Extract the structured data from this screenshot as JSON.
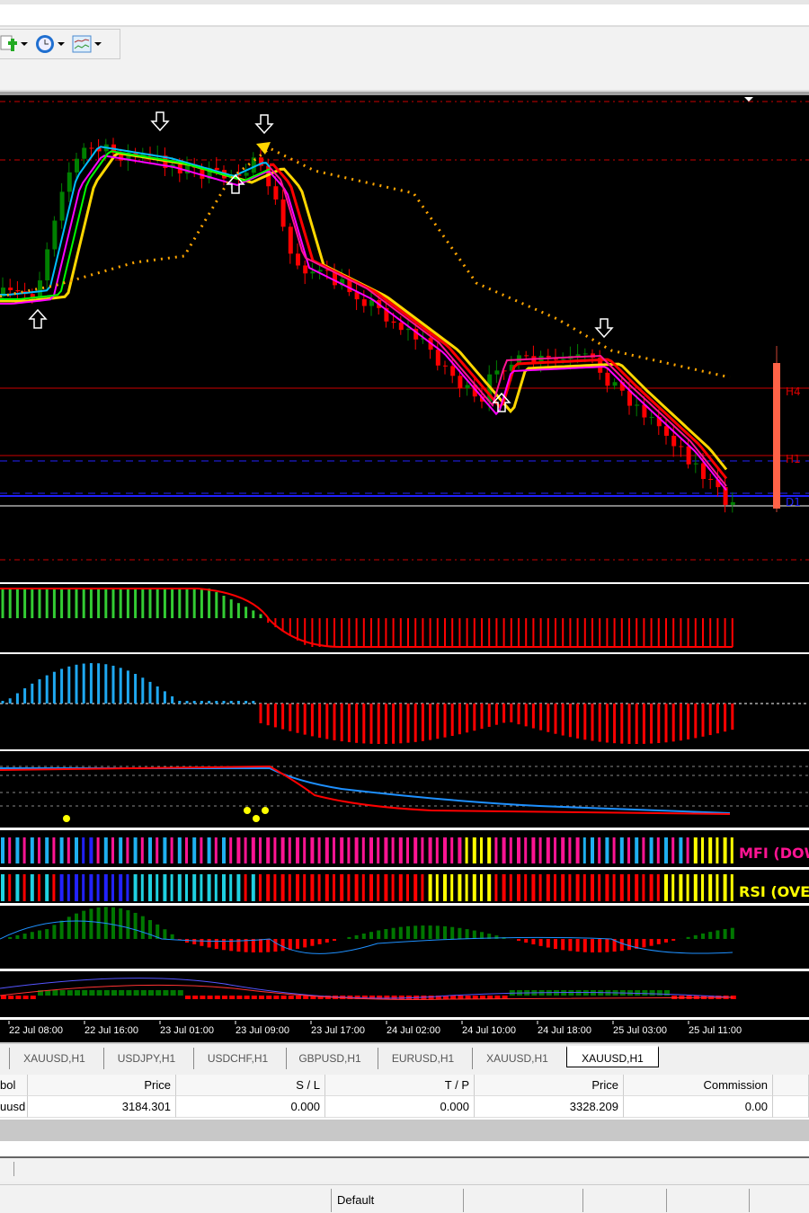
{
  "toolbar": {
    "buttons": [
      {
        "name": "new-chart",
        "icon": "file-plus-icon"
      },
      {
        "name": "periods",
        "icon": "clock-icon"
      },
      {
        "name": "templates",
        "icon": "chart-template-icon"
      }
    ]
  },
  "chart": {
    "symbol": "XAUUSD",
    "timeframe": "H1",
    "colors": {
      "background": "#000000",
      "bull": "#008000",
      "bear": "#ff0000",
      "ma_yellow": "#ffd700",
      "ma_magenta": "#ff00ff",
      "ma_red": "#ff0000",
      "ma_cyan": "#00bfff",
      "ma_green": "#00ff00",
      "trail": "#ffa500"
    },
    "level_labels": {
      "h4": "H4",
      "h1": "H1",
      "d1": "D1"
    },
    "indicator_labels": {
      "mfi": "MFI (DOW",
      "rsi": "RSI (OVE"
    },
    "time_axis": [
      "22 Jul 08:00",
      "22 Jul 16:00",
      "23 Jul 01:00",
      "23 Jul 09:00",
      "23 Jul 17:00",
      "24 Jul 02:00",
      "24 Jul 10:00",
      "24 Jul 18:00",
      "25 Jul 03:00",
      "25 Jul 11:00"
    ]
  },
  "tabs": [
    "XAUUSD,H1",
    "USDJPY,H1",
    "USDCHF,H1",
    "GBPUSD,H1",
    "EURUSD,H1",
    "XAUUSD,H1",
    "XAUUSD,H1"
  ],
  "active_tab": 6,
  "table": {
    "headers": [
      "bol",
      "Price",
      "S / L",
      "T / P",
      "Price",
      "Commission"
    ],
    "row": [
      "uusd",
      "3184.301",
      "0.000",
      "0.000",
      "3328.209",
      "0.00"
    ]
  },
  "status": {
    "profile": "Default"
  }
}
